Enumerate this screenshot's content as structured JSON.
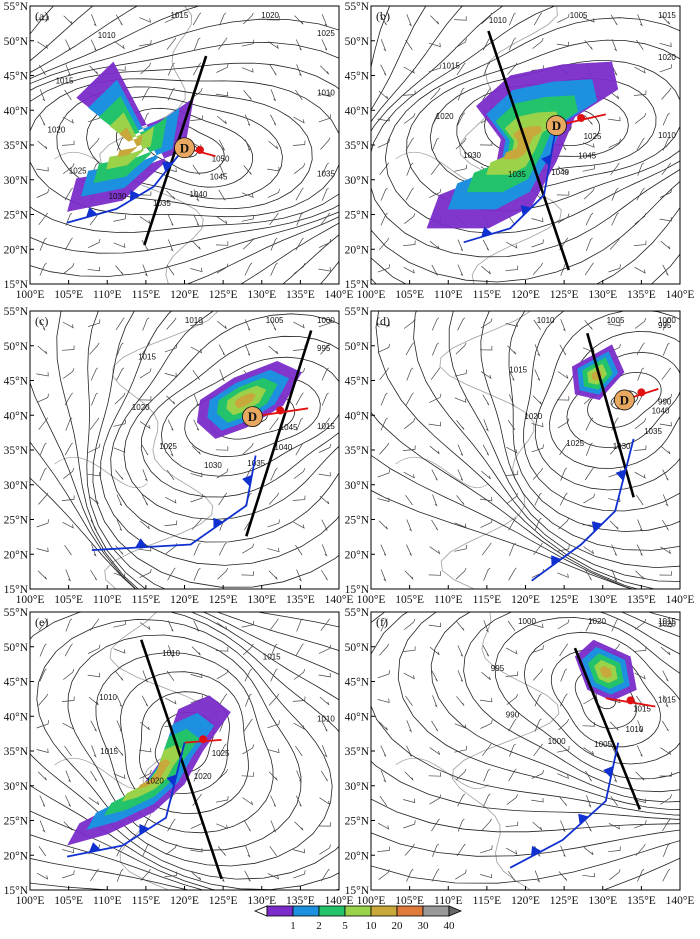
{
  "axes": {
    "lon_labels": [
      "100°E",
      "105°E",
      "110°E",
      "115°E",
      "120°E",
      "125°E",
      "130°E",
      "135°E",
      "140°E"
    ],
    "lat_labels": [
      "55°N",
      "50°N",
      "45°N",
      "40°N",
      "35°N",
      "30°N",
      "25°N",
      "20°N",
      "15°N"
    ]
  },
  "panels": [
    {
      "label": "(a)",
      "low": "D",
      "isobars": [
        "1050",
        "1045",
        "1040",
        "1035",
        "1030",
        "1025",
        "1020",
        "1015",
        "1010",
        "1015",
        "1020",
        "1025",
        "1010",
        "1035"
      ]
    },
    {
      "label": "(b)",
      "low": "D",
      "isobars": [
        "1025",
        "1045",
        "1040",
        "1035",
        "1030",
        "1020",
        "1015",
        "1010",
        "1005",
        "1015",
        "1020",
        "1010"
      ]
    },
    {
      "label": "(c)",
      "low": "D",
      "isobars": [
        "1045",
        "1040",
        "1035",
        "1030",
        "1025",
        "1020",
        "1015",
        "1010",
        "1005",
        "1000",
        "995",
        "1015"
      ]
    },
    {
      "label": "(d)",
      "low": "D",
      "isobars": [
        "1040",
        "1035",
        "1030",
        "1025",
        "1020",
        "1015",
        "1010",
        "1005",
        "1000",
        "995",
        "990"
      ]
    },
    {
      "label": "(e)",
      "low": "",
      "isobars": [
        "1025",
        "1020",
        "1020",
        "1015",
        "1010",
        "1010",
        "1015",
        "1010"
      ]
    },
    {
      "label": "(f)",
      "low": "",
      "isobars": [
        "1015",
        "1010",
        "1005",
        "1000",
        "990",
        "995",
        "1000",
        "1020",
        "1015",
        "1020",
        "1015"
      ]
    }
  ],
  "colorbar": {
    "labels": [
      "1",
      "2",
      "5",
      "10",
      "20",
      "30",
      "40"
    ],
    "colors": [
      "#7a2bc9",
      "#1e90e0",
      "#22c36b",
      "#9ad24a",
      "#c8a83a",
      "#e07a3a",
      "#999999"
    ]
  },
  "colors": {
    "cold_front": "#1030d0",
    "warm_front": "#e01010",
    "trough": "#000000",
    "coast": "#a8a8a8"
  }
}
